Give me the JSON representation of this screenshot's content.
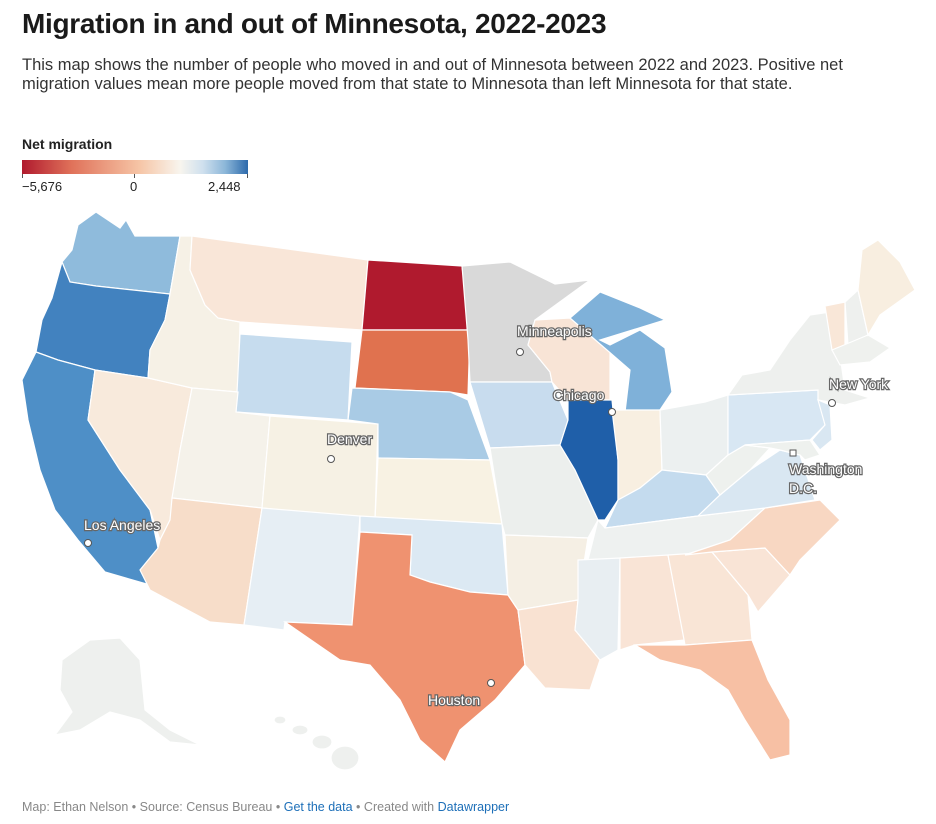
{
  "title": "Migration in and out of Minnesota, 2022-2023",
  "description": "This map shows the number of people who moved in and out of Minnesota between 2022 and 2023. Positive net migration values mean more people moved from that state to Minnesota than left Minnesota for that state.",
  "legend": {
    "title": "Net migration",
    "min_label": "−5,676",
    "mid_label": "0",
    "max_label": "2,448",
    "min": -5676,
    "max": 2448,
    "colors": {
      "negative": "#b01a2e",
      "neutral": "#f8f5ee",
      "positive": "#2d6aac"
    }
  },
  "cities": {
    "minneapolis": "Minneapolis",
    "chicago": "Chicago",
    "new_york": "New York",
    "denver": "Denver",
    "washington_line1": "Washington",
    "washington_line2": "D.C.",
    "los_angeles": "Los Angeles",
    "houston": "Houston"
  },
  "states": {
    "WA": "#8fbbdc",
    "OR": "#4282bf",
    "CA": "#4e8fc7",
    "ID": "#f6f1e6",
    "NV": "#f8eadc",
    "MT": "#f9e6d8",
    "WY": "#c6dcee",
    "UT": "#f5f2ea",
    "AZ": "#f7ddc9",
    "CO": "#f6f1e4",
    "NM": "#e6eef4",
    "ND": "#b01a2e",
    "SD": "#e0724f",
    "NE": "#a9cbe5",
    "KS": "#f8f2e3",
    "OK": "#dce9f3",
    "TX": "#ef9270",
    "MN": "#d9d9d9",
    "IA": "#c8dcee",
    "MO": "#ecefed",
    "AR": "#f5efe4",
    "LA": "#f9e2d2",
    "WI": "#f8e4d6",
    "IL": "#1f5fa9",
    "MI": "#7fb1d9",
    "IN": "#f8efe1",
    "OH": "#ecf0f0",
    "KY": "#c4dbee",
    "TN": "#eef1f0",
    "MS": "#e8eef2",
    "AL": "#f9e4d6",
    "GA": "#f9e5d6",
    "FL": "#f7c0a4",
    "SC": "#f9e4d6",
    "NC": "#f8d7c2",
    "VA": "#d9e7f2",
    "WV": "#eef1ee",
    "PA": "#d8e7f3",
    "NY": "#eef0ee",
    "VT": "#f9e7d8",
    "NH": "#eef0ee",
    "ME": "#f8eee0",
    "MA": "#eff1ee",
    "NJ": "#d9e7f2",
    "MD": "#eef1ee",
    "AK": "#eef0ee",
    "HI": "#eef0ee"
  },
  "footer": {
    "map_by": "Map: Ethan Nelson",
    "source": "Source: Census Bureau",
    "get_data": "Get the data",
    "created_with": "Created with",
    "tool": "Datawrapper",
    "sep": "•"
  }
}
